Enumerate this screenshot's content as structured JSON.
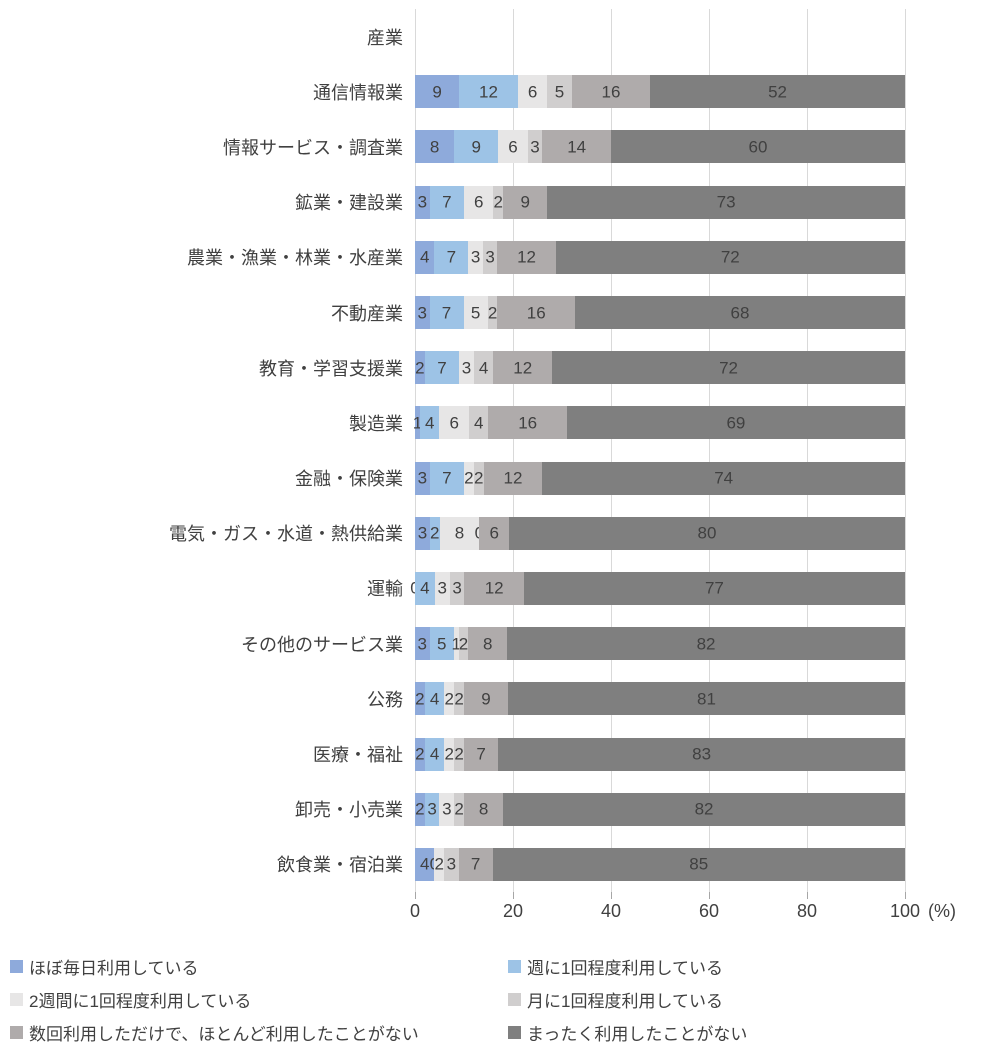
{
  "chart_data": {
    "type": "bar",
    "subtype": "horizontal-stacked",
    "axis_title": "産業",
    "unit_label": "(%)",
    "xlim": [
      0,
      100
    ],
    "x_ticks": [
      0,
      20,
      40,
      60,
      80,
      100
    ],
    "grid": true,
    "legend_position": "bottom",
    "categories": [
      "通信情報業",
      "情報サービス・調査業",
      "鉱業・建設業",
      "農業・漁業・林業・水産業",
      "不動産業",
      "教育・学習支援業",
      "製造業",
      "金融・保険業",
      "電気・ガス・水道・熱供給業",
      "運輸",
      "その他のサービス業",
      "公務",
      "医療・福祉",
      "卸売・小売業",
      "飲食業・宿泊業"
    ],
    "series": [
      {
        "name": "ほぼ毎日利用している",
        "color": "#8EAADB",
        "values": [
          9,
          8,
          3,
          4,
          3,
          2,
          1,
          3,
          3,
          0,
          3,
          2,
          2,
          2,
          4
        ]
      },
      {
        "name": "週に1回程度利用している",
        "color": "#9DC3E6",
        "values": [
          12,
          9,
          7,
          7,
          7,
          7,
          4,
          7,
          2,
          4,
          5,
          4,
          4,
          3,
          0
        ]
      },
      {
        "name": "2週間に1回程度利用している",
        "color": "#E7E6E6",
        "values": [
          6,
          6,
          6,
          3,
          5,
          3,
          6,
          2,
          8,
          3,
          1,
          2,
          2,
          3,
          2
        ]
      },
      {
        "name": "月に1回程度利用している",
        "color": "#D0CECE",
        "values": [
          5,
          3,
          2,
          3,
          2,
          4,
          4,
          2,
          0,
          3,
          2,
          2,
          2,
          2,
          3
        ]
      },
      {
        "name": "数回利用しただけで、ほとんど利用したことがない",
        "color": "#AFABAB",
        "values": [
          16,
          14,
          9,
          12,
          16,
          12,
          16,
          12,
          6,
          12,
          8,
          9,
          7,
          8,
          7
        ]
      },
      {
        "name": "まったく利用したことがない",
        "color": "#7F7F7F",
        "values": [
          52,
          60,
          73,
          72,
          68,
          72,
          69,
          74,
          80,
          77,
          82,
          81,
          83,
          82,
          85
        ]
      }
    ]
  },
  "colors": {
    "background": "#FFFFFF",
    "grid": "#D9D9D9",
    "tick": "#A6A6A6",
    "text": "#404040"
  }
}
